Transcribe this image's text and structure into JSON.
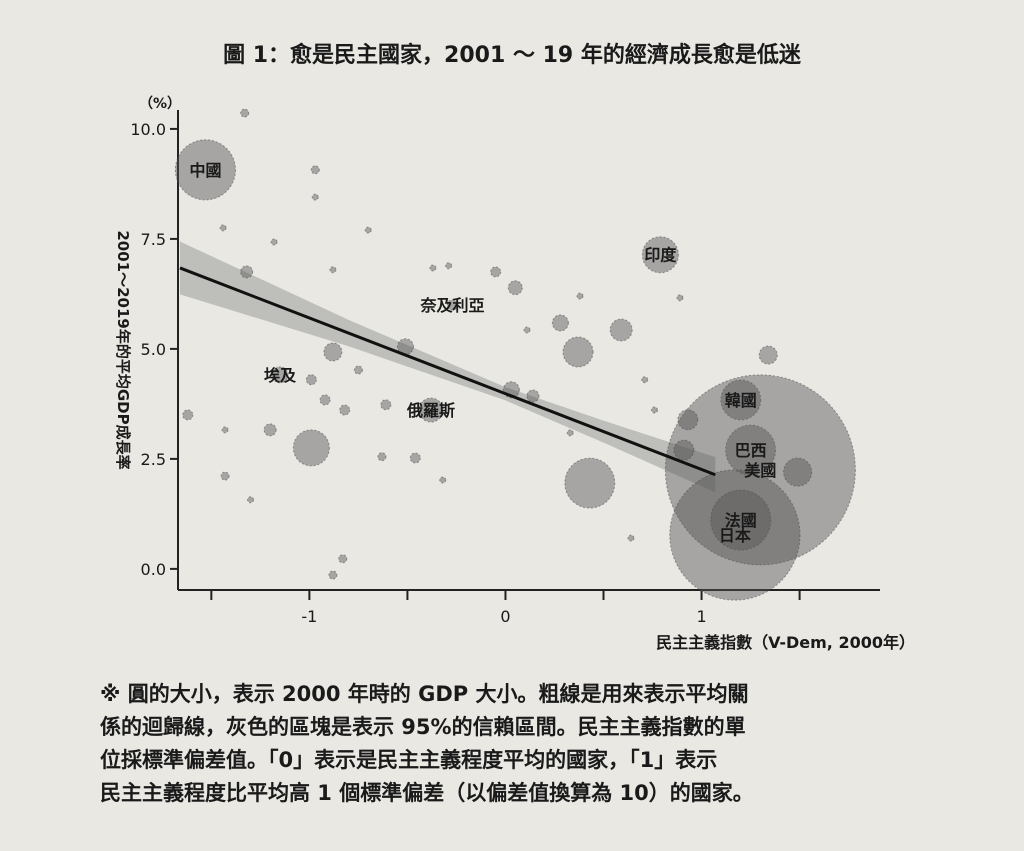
{
  "chart_data": {
    "type": "scatter",
    "title": "圖 1：愈是民主國家，2001 ～ 19 年的經濟成長愈是低迷",
    "y_unit": "（%）",
    "ylabel": "2001～2019年的平均GDP成長率",
    "xlabel": "民主主義指數（V-Dem, 2000年）",
    "xlim": [
      -1.67,
      1.91
    ],
    "ylim": [
      -0.48,
      10.43
    ],
    "xticks": [
      -1,
      0,
      1
    ],
    "xminorticks": [
      -1.5,
      -0.5,
      0.5,
      1.5
    ],
    "yticks": [
      {
        "value": 0,
        "label": "0.0"
      },
      {
        "value": 2.5,
        "label": "2.5"
      },
      {
        "value": 5,
        "label": "5.0"
      },
      {
        "value": 7.5,
        "label": "7.5"
      },
      {
        "value": 10,
        "label": "10.0"
      }
    ],
    "color": "#555555",
    "series": [
      {
        "labels": [
          "中國",
          "印度",
          "奈及利亞",
          "埃及",
          "俄羅斯",
          "韓國",
          "巴西",
          "美國",
          "法國",
          "日本",
          null,
          null,
          null,
          null,
          null,
          null,
          null,
          null,
          null,
          null,
          null,
          null,
          null,
          null,
          null,
          null,
          null,
          null,
          null,
          null,
          null,
          null,
          null,
          null,
          null,
          null,
          null,
          null,
          null,
          null,
          null,
          null,
          null,
          null,
          null,
          null,
          null,
          null,
          null,
          null,
          null,
          null,
          null,
          null,
          null,
          null,
          null
        ],
        "x": [
          -1.53,
          0.79,
          -0.27,
          -1.15,
          -0.38,
          1.2,
          1.25,
          1.3,
          1.2,
          1.17,
          -1.33,
          -1.32,
          -0.97,
          -0.97,
          -1.44,
          -1.18,
          -0.7,
          -0.88,
          -0.37,
          -0.29,
          -0.05,
          0.05,
          0.38,
          0.28,
          0.59,
          0.37,
          0.11,
          0.89,
          -0.88,
          -0.75,
          -0.99,
          -0.51,
          1.34,
          0.71,
          -0.99,
          -1.2,
          -1.43,
          -1.62,
          -1.43,
          -1.3,
          -0.92,
          -0.82,
          -0.61,
          -0.46,
          -0.63,
          -0.32,
          0.03,
          0.14,
          0.33,
          0.43,
          0.64,
          0.93,
          0.91,
          -0.83,
          -0.88,
          1.49,
          0.76
        ],
        "y": [
          9.07,
          7.14,
          6.0,
          4.41,
          3.61,
          3.84,
          2.7,
          2.25,
          1.11,
          0.77,
          10.36,
          6.75,
          9.07,
          8.45,
          7.75,
          7.43,
          7.7,
          6.8,
          6.84,
          6.89,
          6.75,
          6.39,
          6.2,
          5.59,
          5.43,
          4.93,
          5.43,
          6.16,
          4.93,
          4.52,
          4.3,
          5.05,
          4.86,
          4.3,
          2.75,
          3.16,
          3.16,
          3.5,
          2.11,
          1.57,
          3.84,
          3.61,
          3.73,
          2.52,
          2.55,
          2.02,
          4.07,
          3.93,
          3.09,
          1.95,
          0.7,
          3.39,
          2.7,
          0.23,
          -0.14,
          2.2,
          3.61
        ],
        "size": [
          10,
          3.6,
          0.3,
          0.7,
          1.6,
          4.4,
          6.9,
          100,
          10,
          47,
          0.18,
          0.4,
          0.18,
          0.1,
          0.1,
          0.1,
          0.1,
          0.1,
          0.1,
          0.1,
          0.28,
          0.54,
          0.1,
          0.71,
          1.34,
          2.49,
          0.1,
          0.1,
          0.9,
          0.18,
          0.28,
          0.71,
          0.9,
          0.1,
          3.6,
          0.4,
          0.1,
          0.28,
          0.18,
          0.1,
          0.28,
          0.28,
          0.28,
          0.28,
          0.18,
          0.1,
          0.71,
          0.4,
          0.1,
          6.9,
          0.1,
          1.1,
          1.1,
          0.18,
          0.18,
          2.2,
          0.1
        ]
      }
    ],
    "fit": {
      "x": [
        -1.66,
        1.07
      ],
      "y": [
        6.84,
        2.14
      ]
    },
    "band": {
      "x": [
        -1.66,
        -0.8,
        0,
        0.5,
        1.07
      ],
      "upper": [
        7.44,
        5.66,
        4.13,
        3.37,
        2.54
      ],
      "lower": [
        6.24,
        5.06,
        3.83,
        2.87,
        1.74
      ]
    }
  },
  "note": [
    "※ 圓的大小，表示 2000 年時的 GDP 大小。粗線是用來表示平均關",
    "係的迴歸線，灰色的區塊是表示 95%的信賴區間。民主主義指數的單",
    "位採標準偏差值。「0」表示是民主主義程度平均的國家，「1」表示",
    "民主主義程度比平均高 1 個標準偏差（以偏差值換算為 10）的國家。"
  ]
}
